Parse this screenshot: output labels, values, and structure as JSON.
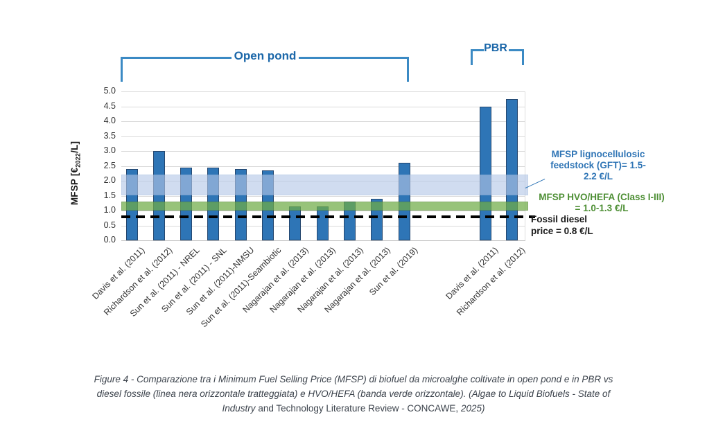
{
  "page": {
    "background": "#ffffff"
  },
  "brackets": {
    "line_color": "#3b8ac4",
    "label_color": "#1b67a9",
    "open_pond": {
      "label": "Open pond"
    },
    "pbr": {
      "label": "PBR"
    }
  },
  "y_axis": {
    "label_full": "MFSP [€2022/L]",
    "label_prefix": "MFSP [€",
    "label_sub": "2022",
    "label_suffix": "/L]"
  },
  "annotations": {
    "gft": {
      "lines": [
        "MFSP lignocellulosic",
        "feedstock (GFT)= 1.5-",
        "2.2 €/L"
      ],
      "color": "#2e74b5"
    },
    "hvo": {
      "lines": [
        "MFSP HVO/HEFA (Class I-III)",
        "= 1.0-1.3 €/L"
      ],
      "color": "#4e8f35"
    },
    "fossil": {
      "lines": [
        "Fossil diesel",
        "price = 0.8 €/L"
      ],
      "color": "#1a1a1a"
    }
  },
  "caption": {
    "line1": "Figure 4 - Comparazione tra i Minimum Fuel Selling Price (MFSP) di biofuel da microalghe coltivate in open pond e in PBR vs",
    "line2": "diesel fossile (linea nera orizzontale tratteggiata) e HVO/HEFA (banda verde orizzontale).  (Algae to Liquid Biofuels - State of",
    "line3_italic1": "Industry",
    "line3_regular": " and Technology Literature Review - CONCAWE, ",
    "line3_italic2": "2025)"
  },
  "chart_data": {
    "type": "bar",
    "title": "",
    "xlabel": "",
    "ylabel": "MFSP [€2022/L]",
    "ylim": [
      0.0,
      5.0
    ],
    "ytick_step": 0.5,
    "grid": true,
    "bar_fill": "#2e75b6",
    "bar_border": "#24466e",
    "groups": [
      {
        "name": "Open pond",
        "categories": [
          "Davis et al. (2011)",
          "Richardson et al. (2012)",
          "Sun et al. (2011) - NREL",
          "Sun et al. (2011) - SNL",
          "Sun et al. (2011)-NMSU",
          "Sun et al. (2011)-Seambiotic",
          "Nagarajan et al. (2013)",
          "Nagarajan et al. (2013)",
          "Nagarajan et al. (2013)",
          "Nagarajan et al. (2013)",
          "Sun et al. (2019)"
        ],
        "values": [
          2.4,
          3.0,
          2.45,
          2.45,
          2.4,
          2.35,
          1.15,
          1.15,
          1.3,
          1.4,
          2.6
        ]
      },
      {
        "name": "PBR",
        "categories": [
          "Davis et al. (2011)",
          "Richardson et al. (2012)"
        ],
        "values": [
          4.5,
          4.75
        ]
      }
    ],
    "reference_bands": [
      {
        "label": "MFSP lignocellulosic feedstock (GFT)= 1.5-2.2 €/L",
        "range": [
          1.5,
          2.2
        ],
        "fill": "#b4c7e7",
        "opacity": 0.62,
        "border": "#9db7dd"
      },
      {
        "label": "MFSP HVO/HEFA (Class I-III) = 1.0-1.3 €/L",
        "range": [
          1.0,
          1.3
        ],
        "fill": "#70ad47",
        "opacity": 0.72,
        "border": "#5a8c39"
      }
    ],
    "reference_lines": [
      {
        "label": "Fossil diesel price = 0.8 €/L",
        "value": 0.8,
        "style": "dashed",
        "color": "#000000"
      }
    ]
  }
}
